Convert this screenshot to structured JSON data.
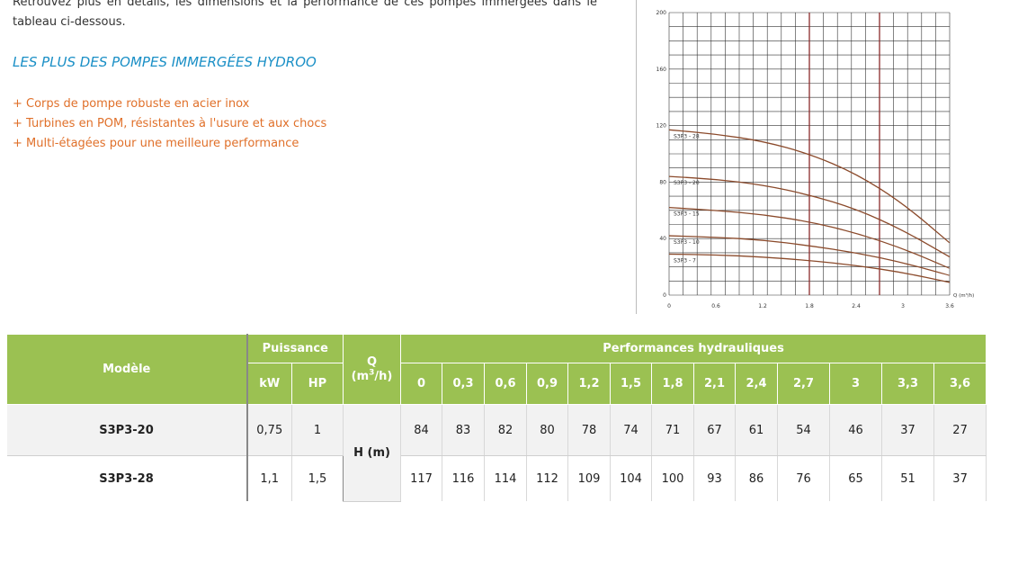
{
  "intro": {
    "text": "Retrouvez plus en détails, les dimensions et la performance de ces pompes immergées dans le tableau ci-dessous."
  },
  "plus": {
    "title": "LES PLUS DES POMPES IMMERGÉES HYDROO",
    "items": [
      "+ Corps de pompe robuste en acier inox",
      "+ Turbines en POM, résistantes à l'usure et aux chocs",
      "+ Multi-étagées pour une meilleure performance"
    ]
  },
  "chart_data": {
    "type": "line",
    "xlabel": "Q (m³/h)",
    "ylabel": "",
    "xlim": [
      0,
      3.6
    ],
    "ylim": [
      0,
      200
    ],
    "x_ticks": [
      "0",
      "0.6",
      "1.2",
      "1.8",
      "2.4",
      "3",
      "3.6"
    ],
    "y_ticks": [
      "0",
      "40",
      "80",
      "120",
      "160",
      "200"
    ],
    "x": [
      0,
      0.6,
      1.2,
      1.8,
      2.4,
      3.0,
      3.6
    ],
    "series": [
      {
        "name": "S3P3 - 28",
        "values": [
          117,
          114,
          109,
          100,
          86,
          65,
          37
        ]
      },
      {
        "name": "S3P3 - 20",
        "values": [
          84,
          82,
          78,
          71,
          61,
          46,
          27
        ]
      },
      {
        "name": "S3P3 - 15",
        "values": [
          62,
          60,
          57,
          52,
          44,
          33,
          19
        ]
      },
      {
        "name": "S3P3 - 10",
        "values": [
          42,
          41,
          39,
          35,
          30,
          23,
          14
        ]
      },
      {
        "name": "S3P3 - 7",
        "values": [
          29,
          28.5,
          27,
          24.5,
          21,
          16,
          9
        ]
      }
    ],
    "colors": {
      "curve": "#8b4a2b",
      "grid": "#333333",
      "highlight": "#8b2b2b"
    },
    "grid": true
  },
  "table": {
    "h_model": "Modèle",
    "h_puissance": "Puissance",
    "h_q": "Q",
    "h_q_unit": "(m3/h)",
    "h_perf": "Performances hydrauliques",
    "h_kw": "kW",
    "h_hp": "HP",
    "q_values": [
      "0",
      "0,3",
      "0,6",
      "0,9",
      "1,2",
      "1,5",
      "1,8",
      "2,1",
      "2,4",
      "2,7",
      "3",
      "3,3",
      "3,6"
    ],
    "h_label": "H (m)",
    "rows": [
      {
        "model": "S3P3-20",
        "kw": "0,75",
        "hp": "1",
        "h": [
          "84",
          "83",
          "82",
          "80",
          "78",
          "74",
          "71",
          "67",
          "61",
          "54",
          "46",
          "37",
          "27"
        ]
      },
      {
        "model": "S3P3-28",
        "kw": "1,1",
        "hp": "1,5",
        "h": [
          "117",
          "116",
          "114",
          "112",
          "109",
          "104",
          "100",
          "93",
          "86",
          "76",
          "65",
          "51",
          "37"
        ]
      }
    ]
  }
}
